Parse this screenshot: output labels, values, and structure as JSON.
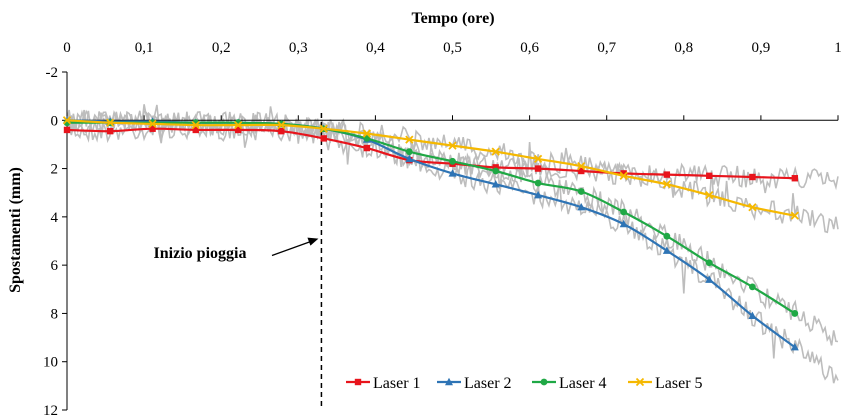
{
  "chart_data": {
    "type": "line",
    "xlabel": "Tempo (ore)",
    "ylabel": "Spostamenti (mm)",
    "xlim": [
      0,
      1
    ],
    "ylim": [
      -2,
      12
    ],
    "y_inverted": true,
    "x_axis_position": "top",
    "xticks": [
      0,
      0.1,
      0.2,
      0.3,
      0.4,
      0.5,
      0.6,
      0.7,
      0.8,
      0.9,
      1
    ],
    "xtick_labels": [
      "0",
      "0,1",
      "0,2",
      "0,3",
      "0,4",
      "0,5",
      "0,6",
      "0,7",
      "0,8",
      "0,9",
      "1"
    ],
    "yticks": [
      -2,
      0,
      2,
      4,
      6,
      8,
      10,
      12
    ],
    "ytick_labels": [
      "-2",
      "0",
      "2",
      "4",
      "6",
      "8",
      "10",
      "12"
    ],
    "grid": false,
    "legend_position": "bottom",
    "annotation": {
      "text": "Inizio pioggia",
      "x": 0.33
    },
    "raw_color": "#bdbdbd",
    "series": [
      {
        "name": "Laser 1",
        "color": "#e8141c",
        "marker": "square",
        "x": [
          0,
          0.056,
          0.111,
          0.167,
          0.222,
          0.278,
          0.333,
          0.389,
          0.444,
          0.5,
          0.556,
          0.611,
          0.667,
          0.722,
          0.778,
          0.833,
          0.889,
          0.944
        ],
        "y": [
          0.4,
          0.45,
          0.35,
          0.4,
          0.4,
          0.45,
          0.75,
          1.15,
          1.65,
          1.8,
          1.95,
          2.0,
          2.1,
          2.2,
          2.25,
          2.3,
          2.35,
          2.4
        ]
      },
      {
        "name": "Laser 2",
        "color": "#2e74b5",
        "marker": "triangle",
        "x": [
          0,
          0.056,
          0.111,
          0.167,
          0.222,
          0.278,
          0.333,
          0.389,
          0.444,
          0.5,
          0.556,
          0.611,
          0.667,
          0.722,
          0.778,
          0.833,
          0.889,
          0.944
        ],
        "y": [
          0.0,
          0.05,
          0.05,
          0.1,
          0.1,
          0.15,
          0.35,
          0.8,
          1.6,
          2.2,
          2.65,
          3.1,
          3.6,
          4.3,
          5.4,
          6.6,
          8.1,
          9.4
        ]
      },
      {
        "name": "Laser 4",
        "color": "#1fa845",
        "marker": "circle",
        "x": [
          0,
          0.056,
          0.111,
          0.167,
          0.222,
          0.278,
          0.333,
          0.389,
          0.444,
          0.5,
          0.556,
          0.611,
          0.667,
          0.722,
          0.778,
          0.833,
          0.889,
          0.944
        ],
        "y": [
          0.1,
          0.1,
          0.1,
          0.1,
          0.1,
          0.15,
          0.35,
          0.75,
          1.3,
          1.7,
          2.1,
          2.6,
          2.95,
          3.8,
          4.8,
          5.9,
          6.9,
          8.0
        ]
      },
      {
        "name": "Laser 5",
        "color": "#f5b800",
        "marker": "cross",
        "x": [
          0,
          0.056,
          0.111,
          0.167,
          0.222,
          0.278,
          0.333,
          0.389,
          0.444,
          0.5,
          0.556,
          0.611,
          0.667,
          0.722,
          0.778,
          0.833,
          0.889,
          0.944
        ],
        "y": [
          0.0,
          0.1,
          0.15,
          0.2,
          0.2,
          0.2,
          0.35,
          0.55,
          0.8,
          1.05,
          1.3,
          1.6,
          1.9,
          2.3,
          2.65,
          3.1,
          3.6,
          3.95
        ]
      }
    ]
  }
}
